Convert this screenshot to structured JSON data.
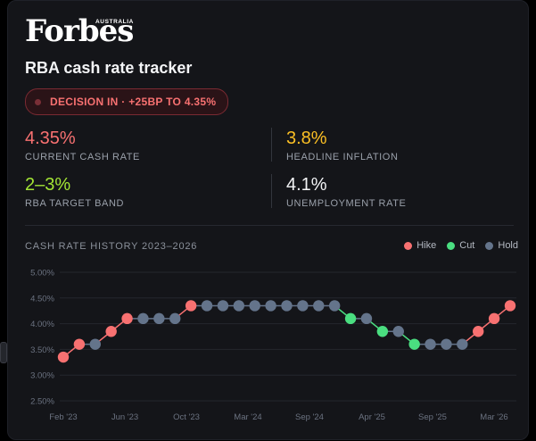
{
  "brand": {
    "logo": "Forbes",
    "edition": "AUSTRALIA"
  },
  "title": "RBA cash rate tracker",
  "decision_pill": "DECISION IN · +25BP TO 4.35%",
  "stats": [
    {
      "value": "4.35%",
      "label": "CURRENT CASH RATE",
      "color": "#f87171"
    },
    {
      "value": "3.8%",
      "label": "HEADLINE INFLATION",
      "color": "#fbbf24"
    },
    {
      "value": "2–3%",
      "label": "RBA TARGET BAND",
      "color": "#a3e635"
    },
    {
      "value": "4.1%",
      "label": "UNEMPLOYMENT RATE",
      "color": "#f3f4f6"
    }
  ],
  "history_title": "CASH RATE HISTORY 2023–2026",
  "legend": [
    {
      "label": "Hike",
      "color": "#f87171"
    },
    {
      "label": "Cut",
      "color": "#4ade80"
    },
    {
      "label": "Hold",
      "color": "#64748b"
    }
  ],
  "chart_data": {
    "type": "line",
    "title": "CASH RATE HISTORY 2023–2026",
    "xlabel": "",
    "ylabel": "",
    "ylim": [
      2.5,
      5.0
    ],
    "y_ticks": [
      "2.50%",
      "3.00%",
      "3.50%",
      "4.00%",
      "4.50%",
      "5.00%"
    ],
    "y_tick_values": [
      2.5,
      3.0,
      3.5,
      4.0,
      4.5,
      5.0
    ],
    "x_ticks": [
      "Feb '23",
      "Jun '23",
      "Oct '23",
      "Mar '24",
      "Sep '24",
      "Apr '25",
      "Sep '25",
      "Mar '26"
    ],
    "grid": true,
    "legend_position": "top-right",
    "series": [
      {
        "values": [
          3.35,
          3.6,
          3.6,
          3.85,
          4.1,
          4.1,
          4.1,
          4.1,
          4.35,
          4.35,
          4.35,
          4.35,
          4.35,
          4.35,
          4.35,
          4.35,
          4.35,
          4.35,
          4.1,
          4.1,
          3.85,
          3.85,
          3.6,
          3.6,
          3.6,
          3.6,
          3.85,
          4.1,
          4.35
        ],
        "decisions": [
          "hike",
          "hike",
          "hold",
          "hike",
          "hike",
          "hold",
          "hold",
          "hold",
          "hike",
          "hold",
          "hold",
          "hold",
          "hold",
          "hold",
          "hold",
          "hold",
          "hold",
          "hold",
          "cut",
          "hold",
          "cut",
          "hold",
          "cut",
          "hold",
          "hold",
          "hold",
          "hike",
          "hike",
          "hike"
        ]
      }
    ]
  }
}
